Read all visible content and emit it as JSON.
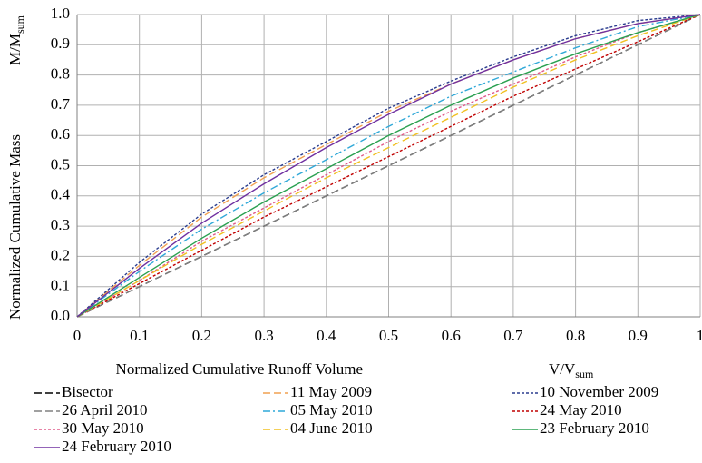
{
  "chart_data": {
    "type": "line",
    "y_label": "Normalized Cumulative Mass",
    "y_symbol": "M/M",
    "y_symbol_sub": "sum",
    "x_label": "Normalized Cumulative Runoff Volume",
    "x_symbol": "V/V",
    "x_symbol_sub": "sum",
    "x": [
      0,
      0.1,
      0.2,
      0.3,
      0.4,
      0.5,
      0.6,
      0.7,
      0.8,
      0.9,
      1
    ],
    "xlim": [
      0,
      1
    ],
    "xticks": [
      0,
      0.1,
      0.2,
      0.3,
      0.4,
      0.5,
      0.6,
      0.7,
      0.8,
      0.9,
      1
    ],
    "ylim": [
      0,
      1
    ],
    "yticks": [
      {
        "value": 0,
        "label": "0.0"
      },
      0.1,
      0.2,
      0.3,
      0.4,
      0.5,
      0.6,
      0.7,
      0.8,
      0.9,
      {
        "value": 1,
        "label": "1.0"
      }
    ],
    "grid": true,
    "legend": "bottom",
    "series": [
      {
        "name": "Bisector",
        "color": "#000000",
        "dash": "dashed",
        "values": [
          0,
          0.1,
          0.2,
          0.3,
          0.4,
          0.5,
          0.6,
          0.7,
          0.8,
          0.9,
          1
        ]
      },
      {
        "name": "11 May 2009",
        "color": "#f0a050",
        "dash": "dashed",
        "values": [
          0,
          0.17,
          0.33,
          0.46,
          0.57,
          0.68,
          0.77,
          0.85,
          0.92,
          0.97,
          1
        ]
      },
      {
        "name": "10 November 2009",
        "color": "#2b3d8f",
        "dash": "dotted",
        "values": [
          0,
          0.18,
          0.34,
          0.47,
          0.58,
          0.69,
          0.78,
          0.86,
          0.93,
          0.98,
          1
        ]
      },
      {
        "name": "26 April 2010",
        "color": "#808080",
        "dash": "dashed",
        "values": [
          0,
          0.1,
          0.2,
          0.3,
          0.4,
          0.5,
          0.6,
          0.7,
          0.8,
          0.9,
          1
        ]
      },
      {
        "name": "05 May 2010",
        "color": "#2fa8d8",
        "dash": "dashdot",
        "values": [
          0,
          0.15,
          0.29,
          0.41,
          0.52,
          0.63,
          0.73,
          0.81,
          0.89,
          0.96,
          1
        ]
      },
      {
        "name": "24 May 2010",
        "color": "#c00000",
        "dash": "dotted",
        "values": [
          0,
          0.11,
          0.22,
          0.33,
          0.43,
          0.53,
          0.63,
          0.73,
          0.82,
          0.91,
          1
        ]
      },
      {
        "name": "30 May 2010",
        "color": "#e05a8a",
        "dash": "dotted",
        "values": [
          0,
          0.12,
          0.25,
          0.36,
          0.47,
          0.58,
          0.68,
          0.77,
          0.86,
          0.94,
          1
        ]
      },
      {
        "name": "04 June 2010",
        "color": "#f0c020",
        "dash": "dashed",
        "values": [
          0,
          0.12,
          0.24,
          0.35,
          0.46,
          0.56,
          0.66,
          0.76,
          0.85,
          0.93,
          1
        ]
      },
      {
        "name": "23 February 2010",
        "color": "#2aa050",
        "dash": "solid",
        "values": [
          0,
          0.13,
          0.26,
          0.38,
          0.49,
          0.6,
          0.7,
          0.79,
          0.87,
          0.94,
          1
        ]
      },
      {
        "name": "24 February 2010",
        "color": "#7030a0",
        "dash": "solid",
        "values": [
          0,
          0.16,
          0.31,
          0.44,
          0.56,
          0.67,
          0.77,
          0.85,
          0.92,
          0.97,
          1
        ]
      }
    ]
  }
}
